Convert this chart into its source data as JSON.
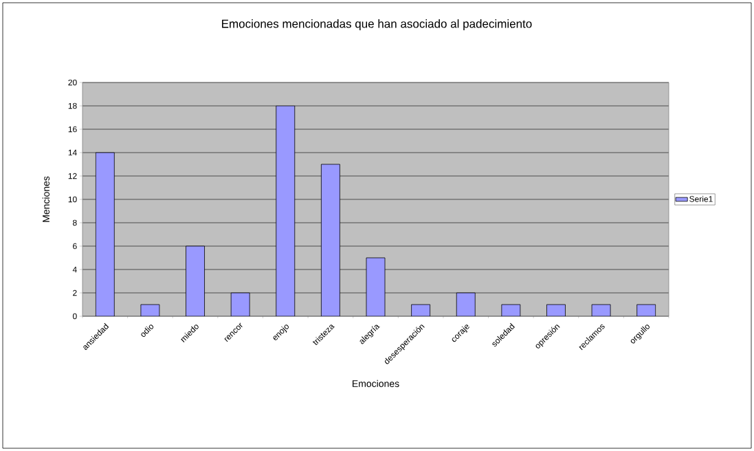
{
  "chart_data": {
    "type": "bar",
    "title": "Emociones mencionadas que han asociado al padecimiento",
    "xlabel": "Emociones",
    "ylabel": "Menciones",
    "categories": [
      "ansiedad",
      "odio",
      "miedo",
      "rencor",
      "enojo",
      "tristeza",
      "alegría",
      "desesperación",
      "coraje",
      "soledad",
      "opresión",
      "reclamos",
      "orgullo"
    ],
    "series": [
      {
        "name": "Serie1",
        "color": "#9999ff",
        "values": [
          14,
          1,
          6,
          2,
          18,
          13,
          5,
          1,
          2,
          1,
          1,
          1,
          1
        ]
      }
    ],
    "ylim": [
      0,
      20
    ],
    "yticks": [
      0,
      2,
      4,
      6,
      8,
      10,
      12,
      14,
      16,
      18,
      20
    ],
    "grid": "y",
    "legend": "right"
  }
}
